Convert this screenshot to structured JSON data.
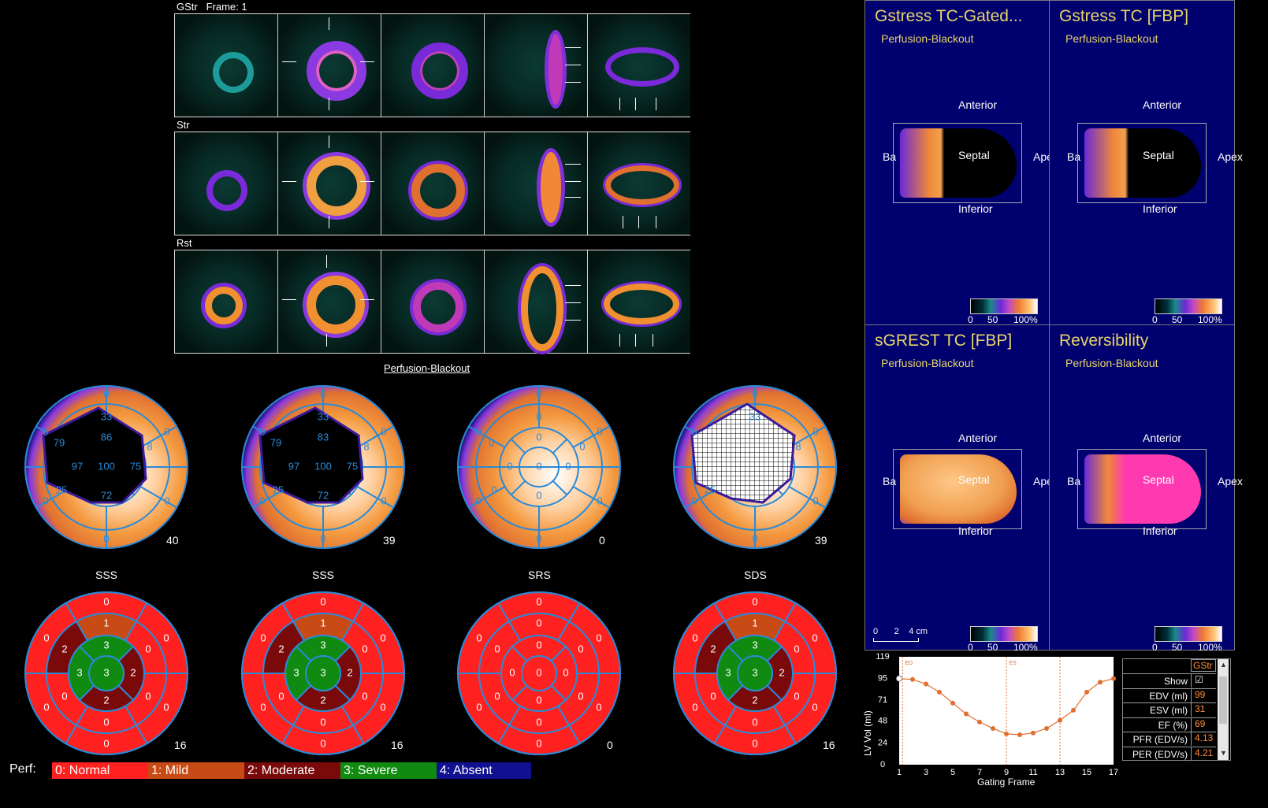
{
  "slices": {
    "row1_label": "GStr",
    "row1_frame": "Frame: 1",
    "row2_label": "Str",
    "row3_label": "Rst",
    "colormap_link": "Perfusion-Blackout"
  },
  "polar": [
    {
      "score": "40",
      "center": "100",
      "inner": [
        "86",
        "97",
        "75",
        "72"
      ],
      "mid": [
        "33",
        "79",
        "8",
        "25"
      ],
      "outer": [
        "0",
        "0",
        "0",
        "0",
        "0",
        "0"
      ]
    },
    {
      "score": "39",
      "center": "100",
      "inner": [
        "83",
        "97",
        "75",
        "72"
      ],
      "mid": [
        "33",
        "79",
        "8",
        "25"
      ],
      "outer": [
        "0",
        "0",
        "0",
        "0",
        "0",
        "0"
      ]
    },
    {
      "score": "0",
      "center": "0",
      "inner": [
        "0",
        "0",
        "0",
        "0"
      ],
      "mid": [
        "0",
        "0",
        "0",
        "0"
      ],
      "outer": [
        "0",
        "0",
        "0",
        "0",
        "0",
        "0"
      ]
    },
    {
      "score": "39",
      "center": "",
      "inner": [],
      "mid": [
        "33",
        "8",
        "25"
      ],
      "outer": [
        "0",
        "0",
        "0",
        "0",
        "0",
        "0"
      ]
    }
  ],
  "seg_titles": [
    "SSS",
    "SSS",
    "SRS",
    "SDS"
  ],
  "seg_scores": [
    "16",
    "16",
    "0",
    "16"
  ],
  "seg_values": [
    {
      "apex": "3",
      "inner": [
        "3",
        "3",
        "2",
        "2"
      ],
      "mid": [
        "1",
        "2",
        "0",
        "0",
        "0",
        "0"
      ],
      "outer": [
        "0",
        "0",
        "0",
        "0",
        "0",
        "0"
      ]
    },
    {
      "apex": "3",
      "inner": [
        "3",
        "3",
        "2",
        "2"
      ],
      "mid": [
        "1",
        "2",
        "0",
        "0",
        "0",
        "0"
      ],
      "outer": [
        "0",
        "0",
        "0",
        "0",
        "0",
        "0"
      ]
    },
    {
      "apex": "0",
      "inner": [
        "0",
        "0",
        "0",
        "0"
      ],
      "mid": [
        "0",
        "0",
        "0",
        "0",
        "0",
        "0"
      ],
      "outer": [
        "0",
        "0",
        "0",
        "0",
        "0",
        "0"
      ]
    },
    {
      "apex": "3",
      "inner": [
        "3",
        "3",
        "2",
        "2"
      ],
      "mid": [
        "1",
        "2",
        "0",
        "0",
        "0",
        "0"
      ],
      "outer": [
        "0",
        "0",
        "0",
        "0",
        "0",
        "0"
      ]
    }
  ],
  "legend": {
    "label": "Perf:",
    "items": [
      {
        "text": "0: Normal",
        "color": "#ff2020"
      },
      {
        "text": "1: Mild",
        "color": "#c84a14"
      },
      {
        "text": "2: Moderate",
        "color": "#7a0a0a"
      },
      {
        "text": "3: Severe",
        "color": "#108a10"
      },
      {
        "text": "4: Absent",
        "color": "#101090"
      }
    ]
  },
  "panels": [
    {
      "title": "Gstress TC-Gated...",
      "sub": "Perfusion-Blackout",
      "anterior": "Anterior",
      "septal": "Septal",
      "inferior": "Inferior",
      "base": "Ba",
      "apex": "Ape"
    },
    {
      "title": "Gstress TC [FBP]",
      "sub": "Perfusion-Blackout",
      "anterior": "Anterior",
      "septal": "Septal",
      "inferior": "Inferior",
      "base": "Ba",
      "apex": "Apex"
    },
    {
      "title": "sGREST TC [FBP]",
      "sub": "Perfusion-Blackout",
      "anterior": "Anterior",
      "septal": "Septal",
      "inferior": "Inferior",
      "base": "Ba",
      "apex": "Apex"
    },
    {
      "title": "Reversibility",
      "sub": "Perfusion-Blackout",
      "anterior": "Anterior",
      "septal": "Septal",
      "inferior": "Inferior",
      "base": "Ba",
      "apex": "Apex"
    }
  ],
  "colorbar": {
    "l0": "0",
    "l50": "50",
    "l100": "100%"
  },
  "scale": {
    "a": "0",
    "b": "2",
    "c": "4 cm"
  },
  "graph": {
    "ylabel": "LV Vol (ml)",
    "xlabel": "Gating Frame",
    "yticks": [
      "119",
      "95",
      "71",
      "48",
      "24",
      "0"
    ],
    "xticks": [
      "1",
      "3",
      "5",
      "7",
      "9",
      "11",
      "13",
      "15",
      "17"
    ],
    "ed": "ED",
    "es": "ES",
    "chart_data": {
      "type": "line",
      "x": [
        1,
        2,
        3,
        4,
        5,
        6,
        7,
        8,
        9,
        10,
        11,
        12,
        13,
        14,
        15,
        16,
        17
      ],
      "y": [
        95,
        94,
        89,
        80,
        68,
        56,
        47,
        40,
        34,
        33,
        35,
        40,
        49,
        60,
        80,
        91,
        95
      ],
      "ylim": [
        0,
        119
      ],
      "xlim": [
        1,
        17
      ]
    }
  },
  "table": {
    "header": "GStr",
    "rows": [
      {
        "k": "Show",
        "v": "☑"
      },
      {
        "k": "EDV (ml)",
        "v": "99"
      },
      {
        "k": "ESV (ml)",
        "v": "31"
      },
      {
        "k": "EF (%)",
        "v": "69"
      },
      {
        "k": "PFR (EDV/s)",
        "v": "4.13"
      },
      {
        "k": "PER (EDV/s)",
        "v": "4.21"
      }
    ]
  }
}
